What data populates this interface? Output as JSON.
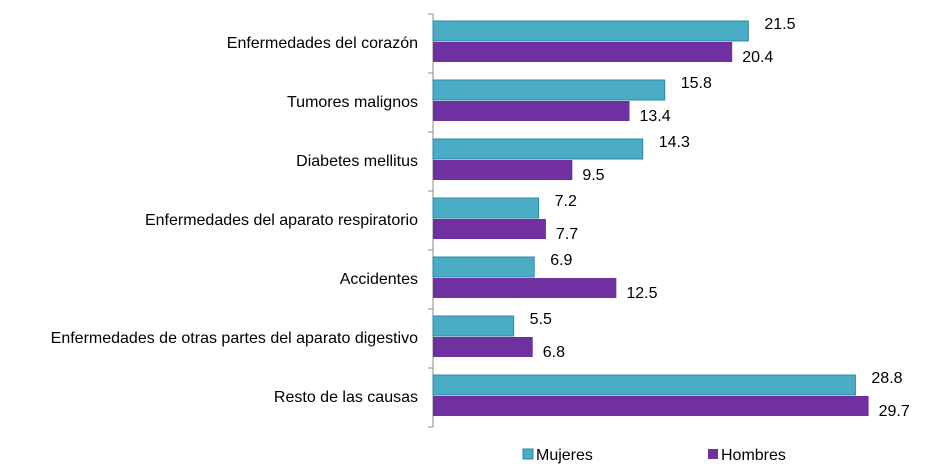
{
  "chart_data": {
    "type": "hbar",
    "categories": [
      "Enfermedades del corazón",
      "Tumores malignos",
      "Diabetes mellitus",
      "Enfermedades del aparato respiratorio",
      "Accidentes",
      "Enfermedades de otras partes del aparato digestivo",
      "Resto de las causas"
    ],
    "series": [
      {
        "name": "Mujeres",
        "color": "#4bacc6",
        "values": [
          21.5,
          15.8,
          14.3,
          7.2,
          6.9,
          5.5,
          28.8
        ]
      },
      {
        "name": "Hombres",
        "color": "#7030a0",
        "values": [
          20.4,
          13.4,
          9.5,
          7.7,
          12.5,
          6.8,
          29.7
        ]
      }
    ],
    "xlim": [
      0,
      30
    ],
    "legend": "bottom"
  }
}
